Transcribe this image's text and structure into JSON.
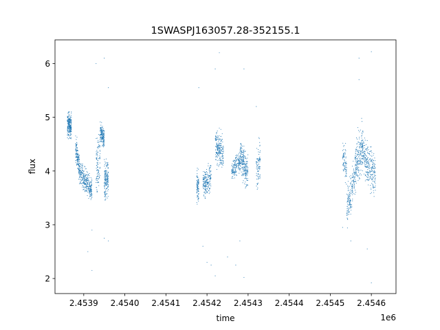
{
  "chart_data": {
    "type": "scatter",
    "title": "1SWASPJ163057.28-352155.1",
    "xlabel": "time",
    "ylabel": "flux",
    "x_offset_label": "1e6",
    "xlim": [
      2.45383,
      2.45466
    ],
    "ylim": [
      1.72,
      6.44
    ],
    "x_ticks": [
      2.4539,
      2.454,
      2.4541,
      2.4542,
      2.4543,
      2.4544,
      2.4545,
      2.4546
    ],
    "x_tick_labels": [
      "2.4539",
      "2.4540",
      "2.4541",
      "2.4542",
      "2.4543",
      "2.4544",
      "2.4545",
      "2.4546"
    ],
    "y_ticks": [
      2,
      3,
      4,
      5,
      6
    ],
    "y_tick_labels": [
      "2",
      "3",
      "4",
      "5",
      "6"
    ],
    "grid": false,
    "marker_color": "#1f77b4",
    "clusters": [
      {
        "x": [
          2.45386,
          2.45387
        ],
        "y_start": 4.85,
        "y_end": 4.85,
        "spread": 0.18,
        "n": 220
      },
      {
        "x": [
          2.45388,
          2.45389
        ],
        "y_start": 4.45,
        "y_end": 4.05,
        "spread": 0.2,
        "n": 160
      },
      {
        "x": [
          2.45389,
          2.45392
        ],
        "y_start": 3.95,
        "y_end": 3.65,
        "spread": 0.17,
        "n": 320
      },
      {
        "x": [
          2.45393,
          2.45394
        ],
        "y_start": 4.0,
        "y_end": 4.3,
        "spread": 0.4,
        "n": 110
      },
      {
        "x": [
          2.45394,
          2.45395
        ],
        "y_start": 4.75,
        "y_end": 4.6,
        "spread": 0.15,
        "n": 160
      },
      {
        "x": [
          2.45395,
          2.45396
        ],
        "y_start": 3.8,
        "y_end": 3.9,
        "spread": 0.3,
        "n": 170
      },
      {
        "x": [
          2.454175,
          2.45418
        ],
        "y_start": 3.7,
        "y_end": 3.7,
        "spread": 0.2,
        "n": 90
      },
      {
        "x": [
          2.45419,
          2.45421
        ],
        "y_start": 3.75,
        "y_end": 3.9,
        "spread": 0.2,
        "n": 200
      },
      {
        "x": [
          2.45422,
          2.45424
        ],
        "y_start": 4.45,
        "y_end": 4.3,
        "spread": 0.25,
        "n": 220
      },
      {
        "x": [
          2.45426,
          2.45428
        ],
        "y_start": 4.0,
        "y_end": 4.2,
        "spread": 0.15,
        "n": 160
      },
      {
        "x": [
          2.45428,
          2.4543
        ],
        "y_start": 4.3,
        "y_end": 3.95,
        "spread": 0.25,
        "n": 240
      },
      {
        "x": [
          2.45432,
          2.45433
        ],
        "y_start": 4.0,
        "y_end": 4.2,
        "spread": 0.3,
        "n": 90
      },
      {
        "x": [
          2.45453,
          2.45454
        ],
        "y_start": 4.3,
        "y_end": 4.0,
        "spread": 0.25,
        "n": 80
      },
      {
        "x": [
          2.45454,
          2.45456
        ],
        "y_start": 3.3,
        "y_end": 3.9,
        "spread": 0.3,
        "n": 170
      },
      {
        "x": [
          2.45456,
          2.45458
        ],
        "y_start": 4.0,
        "y_end": 4.5,
        "spread": 0.35,
        "n": 230
      },
      {
        "x": [
          2.45458,
          2.45461
        ],
        "y_start": 4.3,
        "y_end": 3.9,
        "spread": 0.3,
        "n": 260
      }
    ],
    "outliers": [
      [
        2.45395,
        6.1
      ],
      [
        2.45393,
        6.0
      ],
      [
        2.45396,
        5.55
      ],
      [
        2.45392,
        2.9
      ],
      [
        2.45391,
        2.5
      ],
      [
        2.45392,
        2.15
      ],
      [
        2.45395,
        2.75
      ],
      [
        2.45396,
        2.7
      ],
      [
        2.45423,
        6.2
      ],
      [
        2.45422,
        5.9
      ],
      [
        2.45418,
        5.55
      ],
      [
        2.45421,
        2.25
      ],
      [
        2.45422,
        2.05
      ],
      [
        2.45419,
        2.6
      ],
      [
        2.45425,
        2.4
      ],
      [
        2.45429,
        2.02
      ],
      [
        2.45429,
        5.9
      ],
      [
        2.45432,
        5.2
      ],
      [
        2.45427,
        2.25
      ],
      [
        2.45457,
        6.1
      ],
      [
        2.4546,
        6.22
      ],
      [
        2.45457,
        5.7
      ],
      [
        2.45459,
        2.55
      ],
      [
        2.4546,
        1.92
      ],
      [
        2.45455,
        2.7
      ],
      [
        2.45453,
        2.95
      ],
      [
        2.4542,
        2.3
      ],
      [
        2.45428,
        2.7
      ]
    ]
  }
}
